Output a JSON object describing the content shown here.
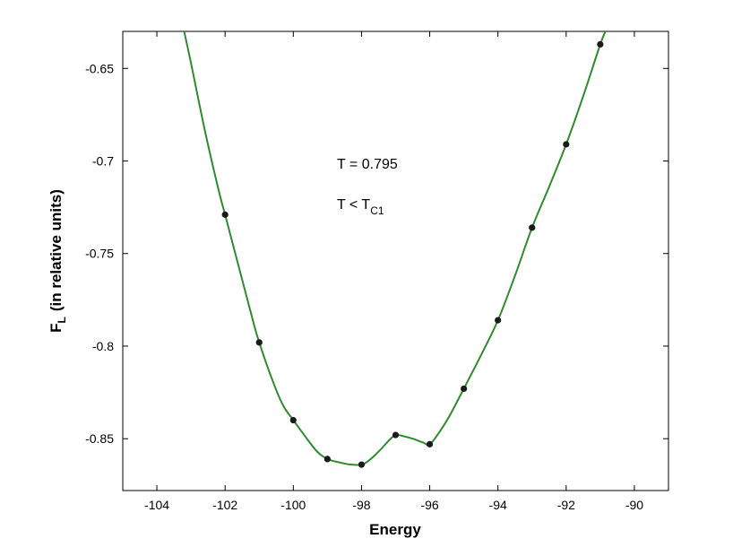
{
  "chart_data": {
    "type": "line",
    "xlabel": "Energy",
    "ylabel_main": "F",
    "ylabel_sub": "L",
    "ylabel_rest": "(in relative units)",
    "xlim": [
      -105,
      -89
    ],
    "ylim": [
      -0.878,
      -0.63
    ],
    "xticks": [
      -104,
      -102,
      -100,
      -98,
      -96,
      -94,
      -92,
      -90
    ],
    "xtick_labels": [
      "-104",
      "-102",
      "-100",
      "-98",
      "-96",
      "-94",
      "-92",
      "-90"
    ],
    "yticks": [
      -0.65,
      -0.7,
      -0.75,
      -0.8,
      -0.85
    ],
    "ytick_labels": [
      "-0.65",
      "-0.7",
      "-0.75",
      "-0.8",
      "-0.85"
    ],
    "grid": false,
    "line_color": "#2e8b2e",
    "marker_color": "#1a1a1a",
    "annotations": {
      "temperature": "T = 0.795",
      "condition_main": "T < T",
      "condition_sub": "C1"
    },
    "series": [
      {
        "x": [
          -102,
          -101,
          -100,
          -99,
          -98,
          -97,
          -96,
          -95,
          -94,
          -93,
          -92,
          -91
        ],
        "y": [
          -0.729,
          -0.798,
          -0.84,
          -0.861,
          -0.864,
          -0.848,
          -0.853,
          -0.823,
          -0.786,
          -0.736,
          -0.691,
          -0.637
        ]
      }
    ],
    "curve": {
      "x": [
        -103.2,
        -103.0,
        -102.6,
        -102.2,
        -102.0,
        -101.6,
        -101.2,
        -101.0,
        -100.6,
        -100.3,
        -100.0,
        -99.6,
        -99.3,
        -99.0,
        -98.6,
        -98.3,
        -98.0,
        -97.8,
        -97.5,
        -97.2,
        -97.0,
        -96.8,
        -96.5,
        -96.2,
        -96.0,
        -95.7,
        -95.4,
        -95.0,
        -94.5,
        -94.0,
        -93.5,
        -93.0,
        -92.5,
        -92.0,
        -91.5,
        -91.0,
        -90.8
      ],
      "y": [
        -0.63,
        -0.647,
        -0.683,
        -0.715,
        -0.729,
        -0.757,
        -0.785,
        -0.798,
        -0.819,
        -0.832,
        -0.84,
        -0.85,
        -0.857,
        -0.861,
        -0.863,
        -0.864,
        -0.864,
        -0.862,
        -0.857,
        -0.851,
        -0.848,
        -0.8485,
        -0.85,
        -0.852,
        -0.853,
        -0.846,
        -0.837,
        -0.823,
        -0.805,
        -0.786,
        -0.762,
        -0.736,
        -0.714,
        -0.691,
        -0.665,
        -0.637,
        -0.628
      ]
    }
  }
}
